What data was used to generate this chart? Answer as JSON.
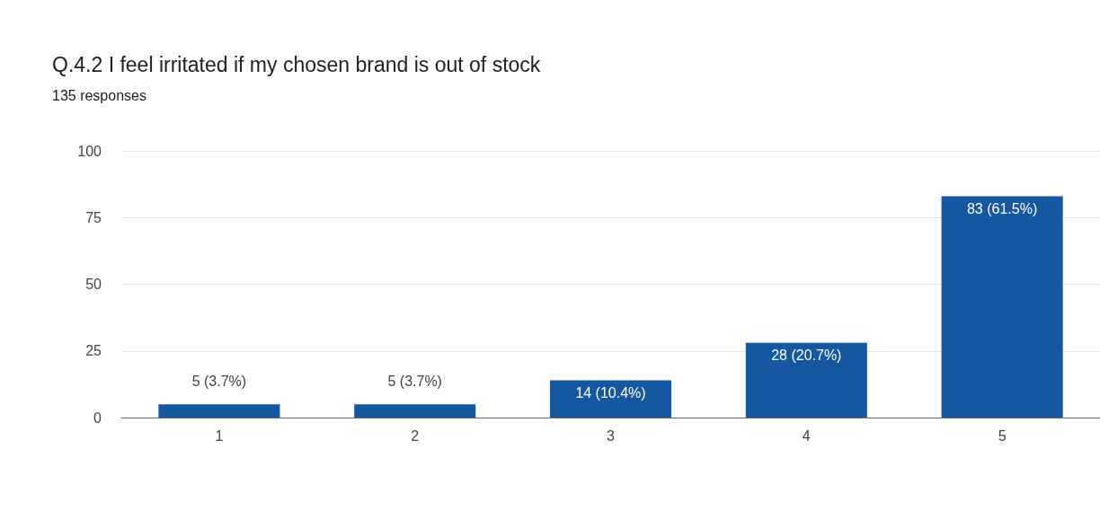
{
  "chart_data": {
    "type": "bar",
    "title": "Q.4.2 I feel irritated if my chosen brand is out of stock",
    "subtitle": "135 responses",
    "categories": [
      "1",
      "2",
      "3",
      "4",
      "5"
    ],
    "values": [
      5,
      5,
      14,
      28,
      83
    ],
    "value_labels": [
      "5 (3.7%)",
      "5 (3.7%)",
      "14 (10.4%)",
      "28 (20.7%)",
      "83 (61.5%)"
    ],
    "color": "#1557a0",
    "ylim": [
      0,
      100
    ],
    "yticks": [
      0,
      25,
      50,
      75,
      100
    ],
    "grid": "y"
  }
}
